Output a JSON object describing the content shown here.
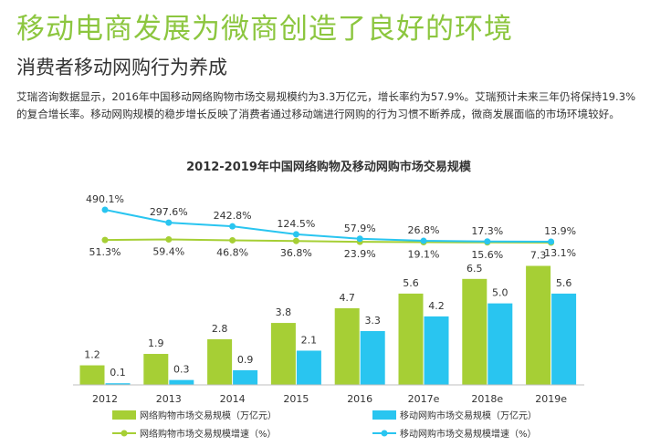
{
  "header": {
    "headline": "移动电商发展为微商创造了良好的环境",
    "subhead": "消费者移动网购行为养成",
    "paragraph": "艾瑞咨询数据显示，2016年中国移动网络购物市场交易规模约为3.3万亿元，增长率约为57.9%。艾瑞预计未来三年仍将保持19.3%的复合增长率。移动网购规模的稳步增长反映了消费者通过移动端进行网购的行为习惯不断养成，微商发展面临的市场环境较好。"
  },
  "chart_data": {
    "type": "bar",
    "title": "2012-2019年中国网络购物及移动网购市场交易规模",
    "categories": [
      "2012",
      "2013",
      "2014",
      "2015",
      "2016",
      "2017e",
      "2018e",
      "2019e"
    ],
    "series": [
      {
        "name": "网络购物市场交易规模（万亿元）",
        "type": "bar",
        "color": "#a6cf35",
        "values": [
          1.2,
          1.9,
          2.8,
          3.8,
          4.7,
          5.6,
          6.5,
          7.3
        ]
      },
      {
        "name": "移动网购市场交易规模（万亿元）",
        "type": "bar",
        "color": "#29c5f0",
        "values": [
          0.1,
          0.3,
          0.9,
          2.1,
          3.3,
          4.2,
          5.0,
          5.6
        ]
      },
      {
        "name": "网络购物市场交易规模增速（%）",
        "type": "line",
        "color": "#a6cf35",
        "values": [
          51.3,
          59.4,
          46.8,
          36.8,
          23.9,
          19.1,
          15.6,
          13.1
        ],
        "labels": [
          "51.3%",
          "59.4%",
          "46.8%",
          "36.8%",
          "23.9%",
          "19.1%",
          "15.6%",
          "13.1%"
        ]
      },
      {
        "name": "移动网购市场交易规模增速（%）",
        "type": "line",
        "color": "#29c5f0",
        "values": [
          490.1,
          297.6,
          242.8,
          124.5,
          57.9,
          26.8,
          17.3,
          13.9
        ],
        "labels": [
          "490.1%",
          "297.6%",
          "242.8%",
          "124.5%",
          "57.9%",
          "26.8%",
          "17.3%",
          "13.9%"
        ]
      }
    ],
    "bar_labels": {
      "online": [
        "1.2",
        "1.9",
        "2.8",
        "3.8",
        "4.7",
        "5.6",
        "6.5",
        "7.3"
      ],
      "mobile": [
        "0.1",
        "0.3",
        "0.9",
        "2.1",
        "3.3",
        "4.2",
        "5.0",
        "5.6"
      ]
    },
    "grid": false,
    "legend_position": "bottom"
  }
}
